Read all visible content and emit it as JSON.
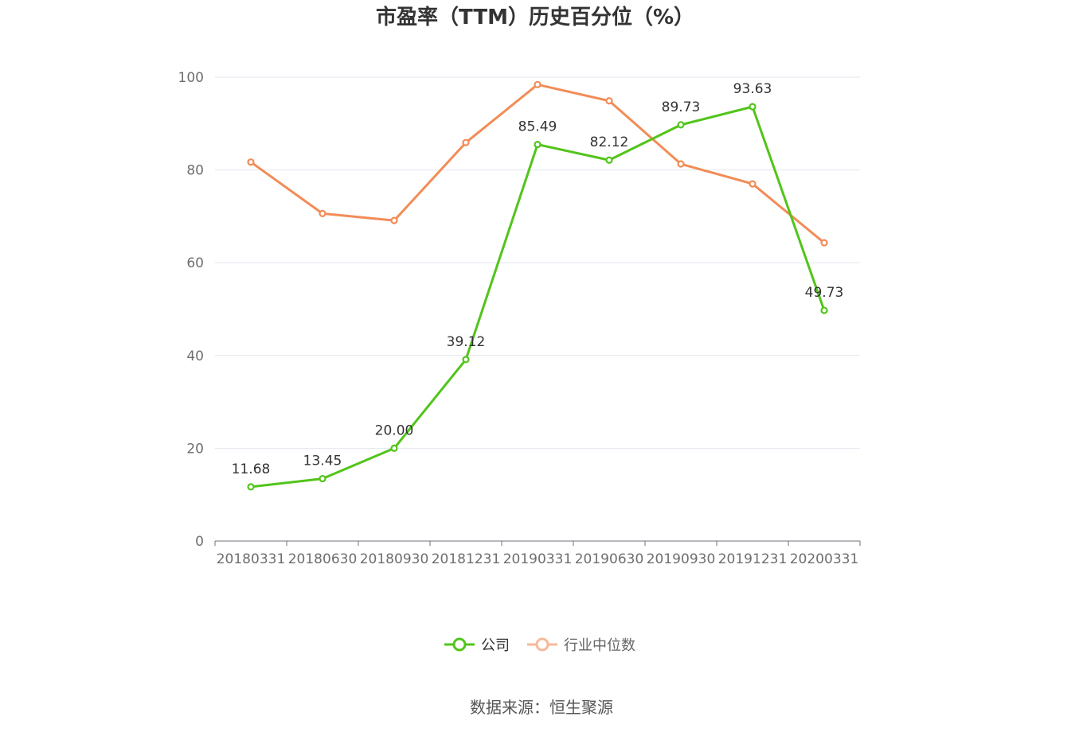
{
  "chart_data": {
    "type": "line",
    "title": "市盈率（TTM）历史百分位（%）",
    "categories": [
      "20180331",
      "20180630",
      "20180930",
      "20181231",
      "20190331",
      "20190630",
      "20190930",
      "20191231",
      "20200331"
    ],
    "ylim": [
      0,
      100
    ],
    "yticks": [
      "0",
      "20",
      "40",
      "60",
      "80",
      "100"
    ],
    "series": [
      {
        "name": "公司",
        "color": "#52c41a",
        "values": [
          11.68,
          13.45,
          20.0,
          39.12,
          85.49,
          82.12,
          89.73,
          93.63,
          49.73
        ],
        "labels": [
          "11.68",
          "13.45",
          "20.00",
          "39.12",
          "85.49",
          "82.12",
          "89.73",
          "93.63",
          "49.73"
        ]
      },
      {
        "name": "行业中位数",
        "color": "#f28c58",
        "values": [
          81.7,
          70.6,
          69.1,
          85.9,
          98.4,
          94.9,
          81.3,
          77.0,
          64.3
        ]
      }
    ],
    "grid": true,
    "legend": "bottom-center",
    "source": "数据来源：恒生聚源"
  }
}
